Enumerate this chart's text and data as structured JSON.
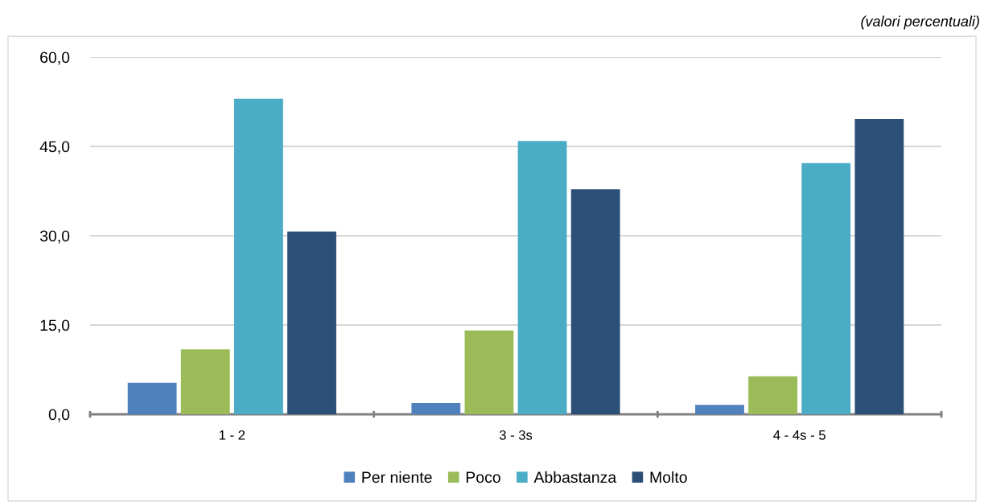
{
  "chart_data": {
    "type": "bar",
    "subtitle": "(valori percentuali)",
    "categories": [
      "1 - 2",
      "3 - 3s",
      "4 - 4s - 5"
    ],
    "series": [
      {
        "name": "Per niente",
        "color": "#4f81bd",
        "values": [
          5.3,
          1.9,
          1.6
        ]
      },
      {
        "name": "Poco",
        "color": "#9bbb59",
        "values": [
          10.9,
          14.1,
          6.4
        ]
      },
      {
        "name": "Abbastanza",
        "color": "#4bacc6",
        "values": [
          53.0,
          45.9,
          42.2
        ]
      },
      {
        "name": "Molto",
        "color": "#2c4f77",
        "values": [
          30.7,
          37.8,
          49.6
        ]
      }
    ],
    "ylim": [
      0,
      60
    ],
    "yticks": [
      {
        "value": 0,
        "label": "0,0"
      },
      {
        "value": 15,
        "label": "15,0"
      },
      {
        "value": 30,
        "label": "30,0"
      },
      {
        "value": 45,
        "label": "45,0"
      },
      {
        "value": 60,
        "label": "60,0"
      }
    ],
    "grid": "y",
    "legend": "bottom"
  }
}
